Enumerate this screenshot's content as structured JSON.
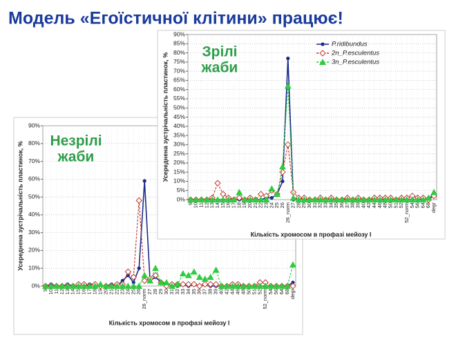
{
  "title": "Модель «Егоїстичної клітини» працює!",
  "chart_data": [
    {
      "type": "line",
      "annotation": [
        "Незрілі",
        "жаби"
      ],
      "ylabel": "Усереднена зустрічальність пластинок, %",
      "xlabel": "Кількість хромосом в профазі мейозу I",
      "categories": [
        "9",
        "10",
        "11",
        "12",
        "13",
        "14",
        "15",
        "16",
        "17",
        "18",
        "19",
        "20",
        "21",
        "22",
        "23",
        "24",
        "25",
        "26",
        "26_norm",
        "27",
        "28",
        "29",
        "30",
        "31",
        "32",
        "33",
        "34",
        "35",
        "36",
        "37",
        "38",
        "39",
        "40",
        "42",
        "44",
        "46",
        "48",
        "50",
        "51",
        "52",
        "52_norm",
        "54",
        "56",
        "64",
        "68",
        "degr"
      ],
      "ylim": [
        0,
        90
      ],
      "yticks": [
        {
          "value": 0,
          "label": "0%"
        },
        {
          "value": 10,
          "label": "10%"
        },
        {
          "value": 20,
          "label": "20%"
        },
        {
          "value": 30,
          "label": "30%"
        },
        {
          "value": 40,
          "label": "40%"
        },
        {
          "value": 50,
          "label": "50%"
        },
        {
          "value": 60,
          "label": "60%"
        },
        {
          "value": 70,
          "label": "70%"
        },
        {
          "value": 80,
          "label": "80%"
        },
        {
          "value": 90,
          "label": "90%"
        }
      ],
      "grid": true,
      "legend": false,
      "series": [
        {
          "color": "#1c2a8c",
          "marker": "circle",
          "dash": false,
          "values": [
            0,
            1,
            0,
            0,
            1,
            0,
            0,
            0,
            1,
            1,
            0,
            0,
            1,
            0,
            3,
            6,
            2,
            10,
            59,
            3,
            5,
            2,
            1,
            1,
            0,
            1,
            0,
            1,
            0,
            1,
            0,
            0,
            0,
            0,
            0,
            0,
            0,
            0,
            0,
            0,
            0,
            0,
            0,
            0,
            0,
            2
          ]
        },
        {
          "color": "#c0392b",
          "marker": "diamond",
          "dash": true,
          "values": [
            0,
            0,
            0,
            0,
            0,
            0,
            1,
            1,
            0,
            1,
            0,
            0,
            0,
            1,
            1,
            8,
            5,
            48,
            3,
            4,
            6,
            2,
            0,
            1,
            1,
            1,
            1,
            1,
            0,
            1,
            1,
            1,
            0,
            0,
            1,
            1,
            0,
            0,
            0,
            2,
            2,
            0,
            0,
            0,
            0,
            0
          ]
        },
        {
          "color": "#2ecc40",
          "marker": "triangle",
          "dash": true,
          "values": [
            0,
            0,
            0,
            0,
            0,
            0,
            0,
            0,
            0,
            0,
            1,
            0,
            0,
            0,
            0,
            0,
            0,
            0,
            6,
            3,
            10,
            2,
            2,
            0,
            1,
            7,
            6,
            8,
            5,
            4,
            5,
            9,
            0,
            0,
            0,
            0,
            0,
            0,
            0,
            0,
            0,
            0,
            0,
            0,
            0,
            12
          ]
        }
      ]
    },
    {
      "type": "line",
      "annotation": [
        "Зрілі",
        "жаби"
      ],
      "ylabel": "Усереднена зустрічальність пластинок, %",
      "xlabel": "Кількість хромосом в профазі мейозу I",
      "categories": [
        "9",
        "10",
        "11",
        "12",
        "13",
        "14",
        "15",
        "16",
        "17",
        "18",
        "19",
        "20",
        "21",
        "22",
        "23",
        "24",
        "25",
        "26",
        "26_norm",
        "27",
        "28",
        "29",
        "30",
        "31",
        "32",
        "33",
        "34",
        "35",
        "36",
        "37",
        "38",
        "39",
        "40",
        "42",
        "44",
        "46",
        "48",
        "50",
        "51",
        "52",
        "52_norm",
        "54",
        "56",
        "64",
        "68",
        "degr"
      ],
      "ylim": [
        0,
        90
      ],
      "yticks": [
        {
          "value": 0,
          "label": "0%"
        },
        {
          "value": 5,
          "label": "5%"
        },
        {
          "value": 10,
          "label": "10%"
        },
        {
          "value": 15,
          "label": "15%"
        },
        {
          "value": 20,
          "label": "20%"
        },
        {
          "value": 25,
          "label": "25%"
        },
        {
          "value": 30,
          "label": "30%"
        },
        {
          "value": 35,
          "label": "35%"
        },
        {
          "value": 40,
          "label": "40%"
        },
        {
          "value": 45,
          "label": "45%"
        },
        {
          "value": 50,
          "label": "50%"
        },
        {
          "value": 55,
          "label": "55%"
        },
        {
          "value": 60,
          "label": "60%"
        },
        {
          "value": 65,
          "label": "65%"
        },
        {
          "value": 70,
          "label": "70%"
        },
        {
          "value": 75,
          "label": "75%"
        },
        {
          "value": 80,
          "label": "80%"
        },
        {
          "value": 85,
          "label": "85%"
        },
        {
          "value": 90,
          "label": "90%"
        }
      ],
      "grid": true,
      "legend": true,
      "series": [
        {
          "name": "P.ridibundus",
          "color": "#1c2a8c",
          "marker": "circle",
          "dash": false,
          "values": [
            0,
            0,
            0,
            0,
            0,
            0,
            0,
            0,
            0,
            0,
            0,
            0,
            0,
            0,
            1,
            1,
            3,
            10,
            77,
            0,
            1,
            0,
            0,
            0,
            0,
            0,
            0,
            0,
            0,
            0,
            0,
            0,
            0,
            0,
            0,
            0,
            0,
            0,
            0,
            0,
            0,
            0,
            0,
            0,
            1,
            2
          ]
        },
        {
          "name": "2n_P.esculentus",
          "color": "#c0392b",
          "marker": "diamond",
          "dash": true,
          "values": [
            0,
            0,
            0,
            0,
            1,
            9,
            3,
            1,
            0,
            1,
            0,
            1,
            0,
            3,
            2,
            5,
            3,
            15,
            30,
            4,
            1,
            1,
            0,
            0,
            1,
            0,
            1,
            0,
            0,
            1,
            0,
            1,
            0,
            0,
            1,
            1,
            1,
            1,
            0,
            1,
            1,
            2,
            1,
            1,
            0,
            2
          ]
        },
        {
          "name": "3n_P.esculentus",
          "color": "#2ecc40",
          "marker": "triangle",
          "dash": true,
          "values": [
            0,
            0,
            0,
            0,
            0,
            0,
            0,
            0,
            0,
            4,
            0,
            0,
            0,
            0,
            0,
            6,
            3,
            18,
            62,
            1,
            0,
            0,
            0,
            0,
            0,
            0,
            0,
            0,
            0,
            0,
            0,
            0,
            0,
            0,
            0,
            0,
            0,
            0,
            0,
            0,
            0,
            0,
            0,
            0,
            1,
            4
          ]
        }
      ]
    }
  ]
}
